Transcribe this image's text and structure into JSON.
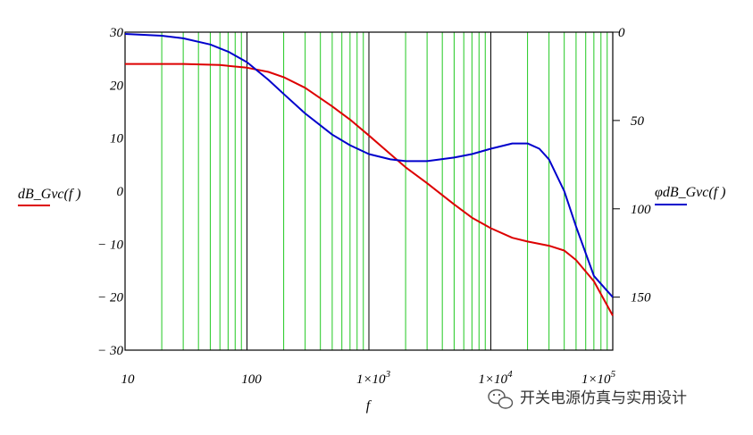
{
  "chart_data": {
    "type": "line",
    "x_scale": "log",
    "xlim": [
      10,
      100000
    ],
    "ylim_left": [
      -30,
      30
    ],
    "ylim_right": [
      0,
      180
    ],
    "right_axis_inverted": true,
    "grid": true,
    "x_tick_labels": [
      "10",
      "100",
      "1×10",
      "1×10",
      "1×10"
    ],
    "x_tick_label_exponents": [
      "",
      "",
      "3",
      "4",
      "5"
    ],
    "y_left_ticks": [
      "30",
      "20",
      "10",
      "0",
      "− 10",
      "− 20",
      "− 30"
    ],
    "y_right_ticks": [
      "0",
      "50",
      "100",
      "150"
    ],
    "xlabel": "f",
    "series": [
      {
        "name": "dB_Gvc(f )",
        "axis": "left",
        "color": "#dd0000",
        "x": [
          10,
          30,
          60,
          100,
          150,
          200,
          300,
          500,
          700,
          1000,
          1500,
          2000,
          3000,
          5000,
          7000,
          10000,
          15000,
          20000,
          30000,
          40000,
          50000,
          70000,
          100000
        ],
        "y": [
          24,
          24,
          23.8,
          23.3,
          22.5,
          21.5,
          19.5,
          16,
          13.5,
          10.5,
          7,
          4.5,
          1.5,
          -2.5,
          -5,
          -7,
          -8.8,
          -9.5,
          -10.3,
          -11.2,
          -13,
          -17,
          -23.5
        ]
      },
      {
        "name": "φdB_Gvc(f )",
        "axis": "right",
        "color": "#0000cc",
        "x": [
          10,
          20,
          30,
          50,
          70,
          100,
          150,
          200,
          300,
          500,
          700,
          1000,
          1500,
          2000,
          3000,
          5000,
          7000,
          10000,
          15000,
          20000,
          25000,
          30000,
          40000,
          50000,
          70000,
          100000
        ],
        "y": [
          1,
          2,
          3.5,
          7,
          11,
          17,
          27,
          35,
          46,
          58,
          64,
          69,
          72,
          73,
          73,
          71,
          69,
          66,
          63,
          63,
          66,
          72,
          90,
          110,
          138,
          150
        ]
      }
    ]
  },
  "watermark": {
    "text": "开关电源仿真与实用设计"
  }
}
